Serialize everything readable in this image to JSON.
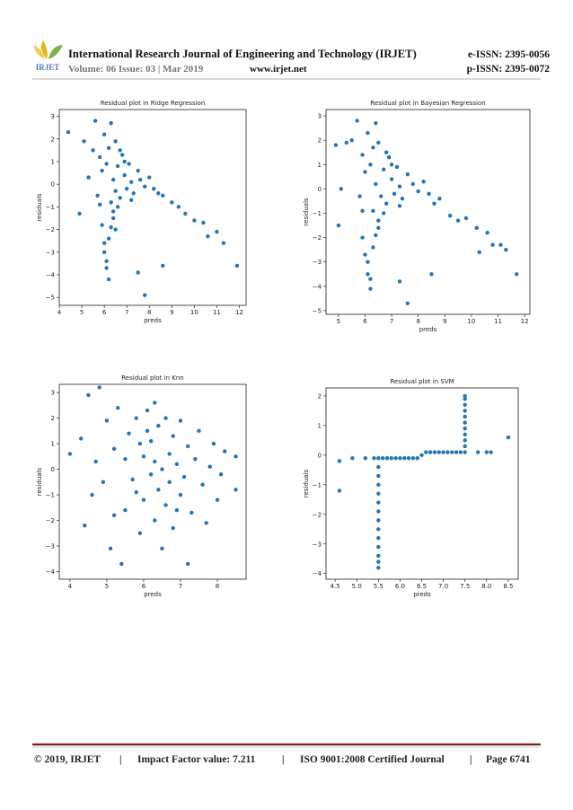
{
  "header": {
    "logo": "IRJET",
    "journal": "International Research Journal of Engineering and Technology (IRJET)",
    "eissn": "e-ISSN: 2395-0056",
    "volume": "Volume: 06 Issue: 03 | Mar 2019",
    "website": "www.irjet.net",
    "pissn": "p-ISSN: 2395-0072"
  },
  "footer": {
    "copyright": "© 2019, IRJET",
    "separator": "|",
    "impact": "Impact Factor value: 7.211",
    "iso": "ISO 9001:2008 Certified Journal",
    "page": "Page 6741"
  },
  "chart_data": [
    {
      "type": "scatter",
      "title": "Residual plot in Ridge Regression",
      "xlabel": "preds",
      "ylabel": "residuals",
      "color": "#1f77b4",
      "x": [
        4.4,
        4.9,
        5.1,
        5.3,
        5.5,
        5.6,
        5.7,
        5.8,
        5.9,
        5.9,
        6.0,
        6.0,
        6.1,
        6.1,
        6.2,
        6.2,
        6.3,
        6.3,
        6.4,
        6.4,
        6.5,
        6.5,
        6.6,
        6.7,
        6.8,
        6.9,
        7.0,
        7.1,
        7.2,
        7.3,
        7.5,
        7.6,
        7.8,
        8.0,
        8.2,
        8.4,
        8.6,
        9.0,
        9.3,
        9.6,
        10.0,
        10.4,
        10.6,
        11.0,
        11.3,
        11.9,
        6.0,
        6.1,
        6.2,
        6.3,
        5.8,
        6.4,
        6.6,
        7.5,
        7.8,
        8.6,
        6.9,
        7.2,
        6.7,
        6.5
      ],
      "values": [
        2.3,
        -1.3,
        1.9,
        0.3,
        1.5,
        2.8,
        -0.5,
        1.2,
        -1.8,
        0.6,
        -2.6,
        2.2,
        -3.4,
        0.9,
        -4.2,
        1.6,
        -0.8,
        2.7,
        0.2,
        -1.2,
        1.9,
        -0.3,
        0.8,
        -0.6,
        1.3,
        0.4,
        -0.2,
        0.9,
        0.1,
        -0.4,
        0.6,
        0.2,
        -0.1,
        0.3,
        -0.2,
        -0.4,
        -0.5,
        -0.8,
        -1.0,
        -1.3,
        -1.6,
        -1.7,
        -2.3,
        -2.1,
        -2.6,
        -3.6,
        -3.0,
        -3.7,
        -2.4,
        -1.9,
        -0.9,
        -1.5,
        -1.0,
        -3.9,
        -4.9,
        -3.6,
        1.0,
        -0.7,
        1.5,
        -2.0
      ],
      "xlim": [
        4,
        12.3
      ],
      "ylim": [
        -5.35,
        3.3
      ],
      "xticks": [
        4,
        5,
        6,
        7,
        8,
        9,
        10,
        11,
        12
      ],
      "yticks": [
        {
          "value": -5,
          "label": "−5"
        },
        {
          "value": -4,
          "label": "−4"
        },
        {
          "value": -3,
          "label": "−3"
        },
        {
          "value": -2,
          "label": "−2"
        },
        {
          "value": -1,
          "label": "−1"
        },
        0,
        1,
        2,
        3
      ]
    },
    {
      "type": "scatter",
      "title": "Residual plot in Bayesian Regression",
      "xlabel": "preds",
      "ylabel": "residuals",
      "color": "#1f77b4",
      "x": [
        4.9,
        5.0,
        5.1,
        5.3,
        5.5,
        5.7,
        5.8,
        5.9,
        5.9,
        6.0,
        6.0,
        6.1,
        6.1,
        6.2,
        6.2,
        6.3,
        6.3,
        6.4,
        6.4,
        6.5,
        6.5,
        6.6,
        6.7,
        6.8,
        6.9,
        7.0,
        7.1,
        7.2,
        7.3,
        7.4,
        7.6,
        7.8,
        8.0,
        8.2,
        8.4,
        8.6,
        8.8,
        9.2,
        9.5,
        9.8,
        10.2,
        10.6,
        10.8,
        11.1,
        11.3,
        11.7,
        6.1,
        6.2,
        6.3,
        6.4,
        5.9,
        6.5,
        6.7,
        7.3,
        7.6,
        8.5,
        7.0,
        7.3,
        6.8,
        10.3
      ],
      "values": [
        1.8,
        -1.5,
        0.0,
        1.9,
        2.0,
        2.8,
        -0.3,
        1.4,
        -2.0,
        0.7,
        -2.7,
        2.3,
        -3.5,
        1.0,
        -4.1,
        1.7,
        -0.9,
        2.7,
        0.2,
        -1.3,
        1.9,
        -0.3,
        0.8,
        -0.6,
        1.3,
        0.4,
        -0.2,
        0.9,
        0.1,
        -0.4,
        0.6,
        0.2,
        -0.1,
        0.3,
        -0.2,
        -0.6,
        -0.4,
        -1.1,
        -1.3,
        -1.2,
        -1.6,
        -1.8,
        -2.3,
        -2.3,
        -2.5,
        -3.5,
        -3.0,
        -3.7,
        -2.4,
        -1.9,
        -0.9,
        -1.6,
        -1.0,
        -3.8,
        -4.7,
        -3.5,
        1.0,
        -0.7,
        1.5,
        -2.6
      ],
      "xlim": [
        4.53,
        12.2
      ],
      "ylim": [
        -5.15,
        3.26
      ],
      "xticks": [
        5,
        6,
        7,
        8,
        9,
        10,
        11,
        12
      ],
      "yticks": [
        {
          "value": -5,
          "label": "−5"
        },
        {
          "value": -4,
          "label": "−4"
        },
        {
          "value": -3,
          "label": "−3"
        },
        {
          "value": -2,
          "label": "−2"
        },
        {
          "value": -1,
          "label": "−1"
        },
        0,
        1,
        2,
        3
      ]
    },
    {
      "type": "scatter",
      "title": "Residual plot in Knn",
      "xlabel": "preds",
      "ylabel": "residuals",
      "color": "#1f77b4",
      "x": [
        4.0,
        4.3,
        4.4,
        4.5,
        4.6,
        4.7,
        4.8,
        4.9,
        5.0,
        5.1,
        5.2,
        5.3,
        5.4,
        5.5,
        5.6,
        5.7,
        5.8,
        5.9,
        6.0,
        6.0,
        6.1,
        6.2,
        6.2,
        6.3,
        6.3,
        6.4,
        6.4,
        6.5,
        6.5,
        6.6,
        6.6,
        6.7,
        6.7,
        6.8,
        6.8,
        6.9,
        7.0,
        7.0,
        7.1,
        7.2,
        7.2,
        7.3,
        7.4,
        7.5,
        7.6,
        7.7,
        7.8,
        7.9,
        8.0,
        8.2,
        8.5,
        8.5,
        8.1,
        5.5,
        5.8,
        6.1,
        6.9,
        5.2,
        6.3,
        5.9
      ],
      "values": [
        0.6,
        1.2,
        -2.2,
        2.9,
        -1.0,
        0.3,
        3.2,
        -0.5,
        1.9,
        -3.1,
        0.8,
        2.4,
        -3.7,
        -1.6,
        1.4,
        -0.4,
        2.0,
        -2.5,
        0.5,
        -1.2,
        2.3,
        -0.2,
        1.1,
        -2.0,
        0.3,
        -0.8,
        1.7,
        -3.1,
        0.0,
        2.0,
        -1.4,
        0.6,
        -0.5,
        1.3,
        -2.3,
        0.2,
        -1.0,
        1.9,
        -0.3,
        0.9,
        -3.7,
        -1.7,
        0.4,
        1.5,
        -0.6,
        -2.1,
        0.1,
        1.0,
        -1.2,
        0.7,
        0.5,
        -0.8,
        -0.2,
        0.4,
        -0.9,
        1.5,
        -1.6,
        -1.8,
        2.6,
        1.0
      ],
      "xlim": [
        3.71,
        8.78
      ],
      "ylim": [
        -4.3,
        3.32
      ],
      "xticks": [
        4,
        5,
        6,
        7,
        8
      ],
      "yticks": [
        {
          "value": -4,
          "label": "−4"
        },
        {
          "value": -3,
          "label": "−3"
        },
        {
          "value": -2,
          "label": "−2"
        },
        {
          "value": -1,
          "label": "−1"
        },
        0,
        1,
        2,
        3
      ]
    },
    {
      "type": "scatter",
      "title": "Residual plot in SVM",
      "xlabel": "preds",
      "ylabel": "residuals",
      "color": "#1f77b4",
      "x": [
        4.6,
        4.6,
        4.9,
        5.2,
        5.4,
        5.5,
        5.6,
        5.7,
        5.8,
        5.9,
        6.0,
        6.1,
        6.2,
        6.3,
        6.4,
        6.5,
        6.6,
        6.7,
        6.8,
        6.9,
        7.0,
        7.1,
        7.2,
        7.3,
        7.4,
        7.5,
        7.8,
        8.0,
        8.1,
        8.5,
        5.5,
        5.5,
        5.5,
        5.5,
        5.5,
        5.5,
        5.5,
        5.5,
        5.5,
        5.5,
        5.5,
        5.5,
        5.5,
        7.5,
        7.5,
        7.5,
        7.5,
        7.5,
        7.5,
        7.5,
        7.5,
        7.5,
        7.5
      ],
      "values": [
        -0.2,
        -1.2,
        -0.1,
        -0.1,
        -0.1,
        -0.1,
        -0.1,
        -0.1,
        -0.1,
        -0.1,
        -0.1,
        -0.1,
        -0.1,
        -0.1,
        -0.1,
        0.0,
        0.1,
        0.1,
        0.1,
        0.1,
        0.1,
        0.1,
        0.1,
        0.1,
        0.1,
        0.1,
        0.1,
        0.1,
        0.1,
        0.6,
        -0.4,
        -0.7,
        -1.0,
        -1.3,
        -1.6,
        -1.9,
        -2.2,
        -2.5,
        -2.8,
        -3.1,
        -3.4,
        -3.6,
        -3.8,
        0.3,
        0.5,
        0.7,
        0.9,
        1.1,
        1.3,
        1.5,
        1.7,
        1.9,
        2.0
      ],
      "xlim": [
        4.29,
        8.73
      ],
      "ylim": [
        -4.19,
        2.27
      ],
      "xticks": [
        4.5,
        {
          "value": 5,
          "label": "5.0"
        },
        5.5,
        {
          "value": 6,
          "label": "6.0"
        },
        6.5,
        {
          "value": 7,
          "label": "7.0"
        },
        7.5,
        {
          "value": 8,
          "label": "8.0"
        },
        8.5
      ],
      "yticks": [
        {
          "value": -4,
          "label": "−4"
        },
        {
          "value": -3,
          "label": "−3"
        },
        {
          "value": -2,
          "label": "−2"
        },
        {
          "value": -1,
          "label": "−1"
        },
        0,
        1,
        2
      ]
    }
  ]
}
